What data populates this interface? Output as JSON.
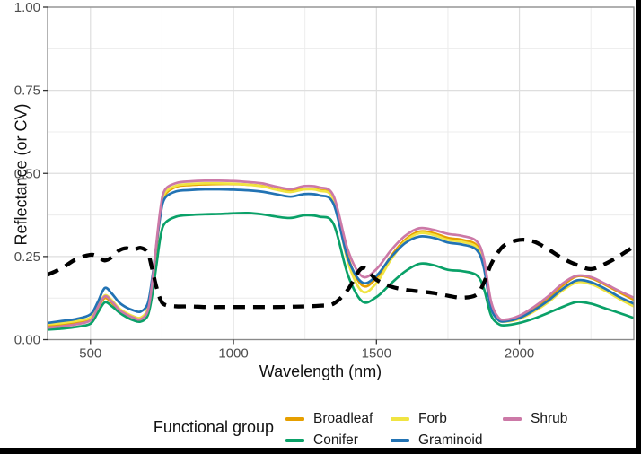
{
  "frame_bars": {
    "color": "#000000"
  },
  "panel": {
    "background": "#ffffff",
    "border_color": "#8a8a8a",
    "grid_major_color": "#dedede",
    "grid_minor_color": "#ececec",
    "tick_color": "#333333"
  },
  "axes": {
    "x": {
      "label": "Wavelength (nm)",
      "tick_values": [
        500,
        1000,
        1500,
        2000
      ],
      "tick_labels": [
        "500",
        "1000",
        "1500",
        "2000"
      ],
      "minor_values": [
        750,
        1250,
        1750,
        2250
      ],
      "range": [
        350,
        2400
      ]
    },
    "y": {
      "label": "Reflectance (or CV)",
      "tick_values": [
        0,
        0.25,
        0.5,
        0.75,
        1.0
      ],
      "tick_labels": [
        "0.00",
        "0.25",
        "0.50",
        "0.75",
        "1.00"
      ],
      "minor_values": [
        0.125,
        0.375,
        0.625,
        0.875
      ],
      "range": [
        0,
        1
      ]
    }
  },
  "legend": {
    "title": "Functional group",
    "items": [
      {
        "label": "Broadleaf",
        "color": "#E69F00",
        "col": 0,
        "row": 0
      },
      {
        "label": "Conifer",
        "color": "#0AA168",
        "col": 0,
        "row": 1
      },
      {
        "label": "Forb",
        "color": "#F0E442",
        "col": 1,
        "row": 0
      },
      {
        "label": "Graminoid",
        "color": "#2273B4",
        "col": 1,
        "row": 1
      },
      {
        "label": "Shrub",
        "color": "#CC79A7",
        "col": 2,
        "row": 0
      }
    ]
  },
  "chart_data": {
    "type": "line",
    "title": "",
    "xlabel": "Wavelength (nm)",
    "ylabel": "Reflectance (or CV)",
    "xlim": [
      350,
      2400
    ],
    "ylim": [
      0,
      1
    ],
    "grid": true,
    "legend_position": "bottom",
    "x": [
      350,
      400,
      450,
      500,
      525,
      550,
      575,
      600,
      625,
      650,
      675,
      700,
      715,
      730,
      745,
      760,
      800,
      850,
      900,
      950,
      1000,
      1050,
      1100,
      1150,
      1200,
      1250,
      1300,
      1350,
      1400,
      1450,
      1500,
      1550,
      1600,
      1650,
      1700,
      1750,
      1800,
      1850,
      1875,
      1900,
      1925,
      1950,
      2000,
      2050,
      2100,
      2150,
      2200,
      2250,
      2300,
      2350,
      2400
    ],
    "series": [
      {
        "name": "Broadleaf",
        "color": "#E69F00",
        "dashed": false,
        "in_legend": true,
        "values": [
          0.04,
          0.045,
          0.05,
          0.06,
          0.095,
          0.125,
          0.11,
          0.088,
          0.075,
          0.066,
          0.062,
          0.085,
          0.16,
          0.27,
          0.38,
          0.435,
          0.46,
          0.465,
          0.467,
          0.468,
          0.468,
          0.466,
          0.462,
          0.452,
          0.447,
          0.454,
          0.45,
          0.424,
          0.25,
          0.163,
          0.185,
          0.25,
          0.3,
          0.325,
          0.32,
          0.306,
          0.3,
          0.284,
          0.23,
          0.105,
          0.065,
          0.058,
          0.068,
          0.092,
          0.123,
          0.162,
          0.19,
          0.185,
          0.165,
          0.142,
          0.12
        ]
      },
      {
        "name": "Conifer",
        "color": "#0AA168",
        "dashed": false,
        "in_legend": true,
        "values": [
          0.03,
          0.033,
          0.038,
          0.048,
          0.08,
          0.112,
          0.1,
          0.082,
          0.068,
          0.058,
          0.054,
          0.072,
          0.13,
          0.22,
          0.31,
          0.35,
          0.37,
          0.375,
          0.377,
          0.378,
          0.38,
          0.381,
          0.377,
          0.37,
          0.366,
          0.374,
          0.37,
          0.348,
          0.195,
          0.115,
          0.128,
          0.168,
          0.205,
          0.228,
          0.224,
          0.21,
          0.206,
          0.194,
          0.155,
          0.075,
          0.048,
          0.043,
          0.05,
          0.063,
          0.08,
          0.098,
          0.113,
          0.108,
          0.094,
          0.08,
          0.065
        ]
      },
      {
        "name": "Forb",
        "color": "#F0E442",
        "dashed": false,
        "in_legend": true,
        "values": [
          0.046,
          0.05,
          0.056,
          0.066,
          0.1,
          0.133,
          0.118,
          0.094,
          0.08,
          0.07,
          0.066,
          0.092,
          0.17,
          0.28,
          0.385,
          0.44,
          0.463,
          0.468,
          0.47,
          0.47,
          0.469,
          0.466,
          0.461,
          0.451,
          0.444,
          0.452,
          0.448,
          0.42,
          0.235,
          0.145,
          0.17,
          0.24,
          0.295,
          0.32,
          0.315,
          0.3,
          0.294,
          0.278,
          0.225,
          0.1,
          0.06,
          0.054,
          0.062,
          0.084,
          0.112,
          0.147,
          0.172,
          0.167,
          0.147,
          0.122,
          0.1
        ]
      },
      {
        "name": "Graminoid",
        "color": "#2273B4",
        "dashed": false,
        "in_legend": true,
        "values": [
          0.05,
          0.056,
          0.062,
          0.076,
          0.112,
          0.155,
          0.138,
          0.112,
          0.097,
          0.088,
          0.084,
          0.108,
          0.18,
          0.28,
          0.375,
          0.425,
          0.446,
          0.45,
          0.452,
          0.452,
          0.451,
          0.449,
          0.445,
          0.437,
          0.43,
          0.438,
          0.434,
          0.408,
          0.245,
          0.172,
          0.192,
          0.247,
          0.29,
          0.31,
          0.306,
          0.292,
          0.286,
          0.27,
          0.218,
          0.098,
          0.06,
          0.055,
          0.065,
          0.088,
          0.117,
          0.152,
          0.178,
          0.173,
          0.153,
          0.128,
          0.108
        ]
      },
      {
        "name": "Shrub",
        "color": "#CC79A7",
        "dashed": false,
        "in_legend": true,
        "values": [
          0.036,
          0.04,
          0.046,
          0.058,
          0.096,
          0.13,
          0.114,
          0.09,
          0.076,
          0.066,
          0.061,
          0.086,
          0.165,
          0.285,
          0.395,
          0.45,
          0.471,
          0.476,
          0.478,
          0.478,
          0.477,
          0.474,
          0.47,
          0.46,
          0.453,
          0.462,
          0.458,
          0.432,
          0.27,
          0.19,
          0.212,
          0.268,
          0.312,
          0.335,
          0.33,
          0.318,
          0.312,
          0.296,
          0.245,
          0.118,
          0.068,
          0.06,
          0.072,
          0.098,
          0.13,
          0.168,
          0.192,
          0.188,
          0.168,
          0.146,
          0.126
        ]
      },
      {
        "name": "CV",
        "color": "#000000",
        "dashed": true,
        "in_legend": false,
        "values": [
          0.195,
          0.215,
          0.242,
          0.255,
          0.25,
          0.238,
          0.248,
          0.268,
          0.275,
          0.27,
          0.276,
          0.262,
          0.215,
          0.16,
          0.12,
          0.105,
          0.1,
          0.1,
          0.098,
          0.098,
          0.098,
          0.098,
          0.098,
          0.098,
          0.099,
          0.1,
          0.102,
          0.108,
          0.15,
          0.215,
          0.18,
          0.16,
          0.15,
          0.145,
          0.14,
          0.132,
          0.126,
          0.135,
          0.17,
          0.225,
          0.262,
          0.285,
          0.3,
          0.295,
          0.272,
          0.245,
          0.225,
          0.212,
          0.228,
          0.252,
          0.28
        ]
      }
    ]
  }
}
